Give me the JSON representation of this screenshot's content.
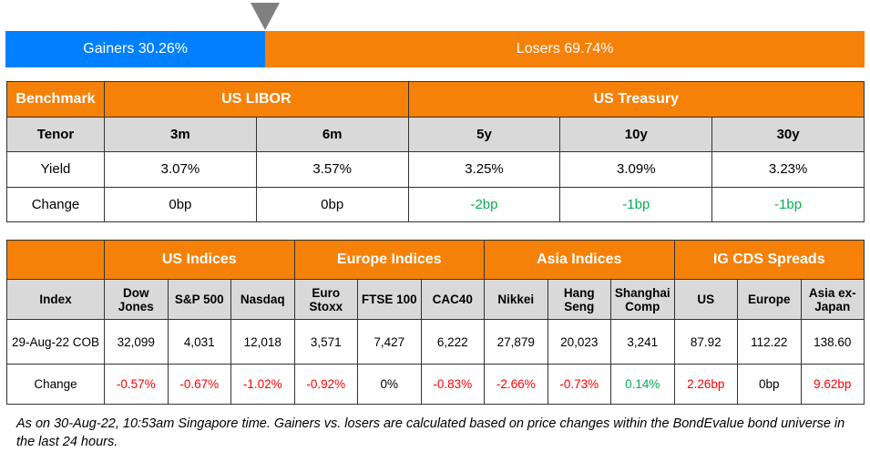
{
  "bar": {
    "gainers_label": "Gainers 30.26%",
    "losers_label": "Losers 69.74%",
    "gainers_pct": 30.26,
    "losers_pct": 69.74,
    "gainers_color": "#0080ff",
    "losers_color": "#f68108"
  },
  "rates": {
    "benchmark": "Benchmark",
    "libor": "US LIBOR",
    "treasury": "US Treasury",
    "tenor": "Tenor",
    "tenors": [
      "3m",
      "6m",
      "5y",
      "10y",
      "30y"
    ],
    "yield_label": "Yield",
    "yields": [
      "3.07%",
      "3.57%",
      "3.25%",
      "3.09%",
      "3.23%"
    ],
    "change_label": "Change",
    "changes": [
      "0bp",
      "0bp",
      "-2bp",
      "-1bp",
      "-1bp"
    ]
  },
  "indices": {
    "groups": [
      "US Indices",
      "Europe Indices",
      "Asia Indices",
      "IG CDS Spreads"
    ],
    "index_label": "Index",
    "names": [
      [
        "Dow",
        "Jones"
      ],
      [
        "S&P 500",
        ""
      ],
      [
        "Nasdaq",
        ""
      ],
      [
        "Euro",
        "Stoxx"
      ],
      [
        "FTSE 100",
        ""
      ],
      [
        "CAC40",
        ""
      ],
      [
        "Nikkei",
        ""
      ],
      [
        "Hang",
        "Seng"
      ],
      [
        "Shanghai",
        "Comp"
      ],
      [
        "US",
        ""
      ],
      [
        "Europe",
        ""
      ],
      [
        "Asia ex-",
        "Japan"
      ]
    ],
    "date_label": "29-Aug-22 COB",
    "values": [
      "32,099",
      "4,031",
      "12,018",
      "3,571",
      "7,427",
      "6,222",
      "27,879",
      "20,023",
      "3,241",
      "87.92",
      "112.22",
      "138.60"
    ],
    "change_label": "Change",
    "changes": [
      "-0.57%",
      "-0.67%",
      "-1.02%",
      "-0.92%",
      "0%",
      "-0.83%",
      "-2.66%",
      "-0.73%",
      "0.14%",
      "2.26bp",
      "0bp",
      "9.62bp"
    ],
    "change_colors": [
      "red",
      "red",
      "red",
      "red",
      "black",
      "red",
      "red",
      "red",
      "green",
      "red",
      "black",
      "red"
    ]
  },
  "note": "As on 30-Aug-22, 10:53am Singapore time. Gainers vs. losers are calculated based on price changes within the BondEvalue bond universe in the last 24 hours."
}
